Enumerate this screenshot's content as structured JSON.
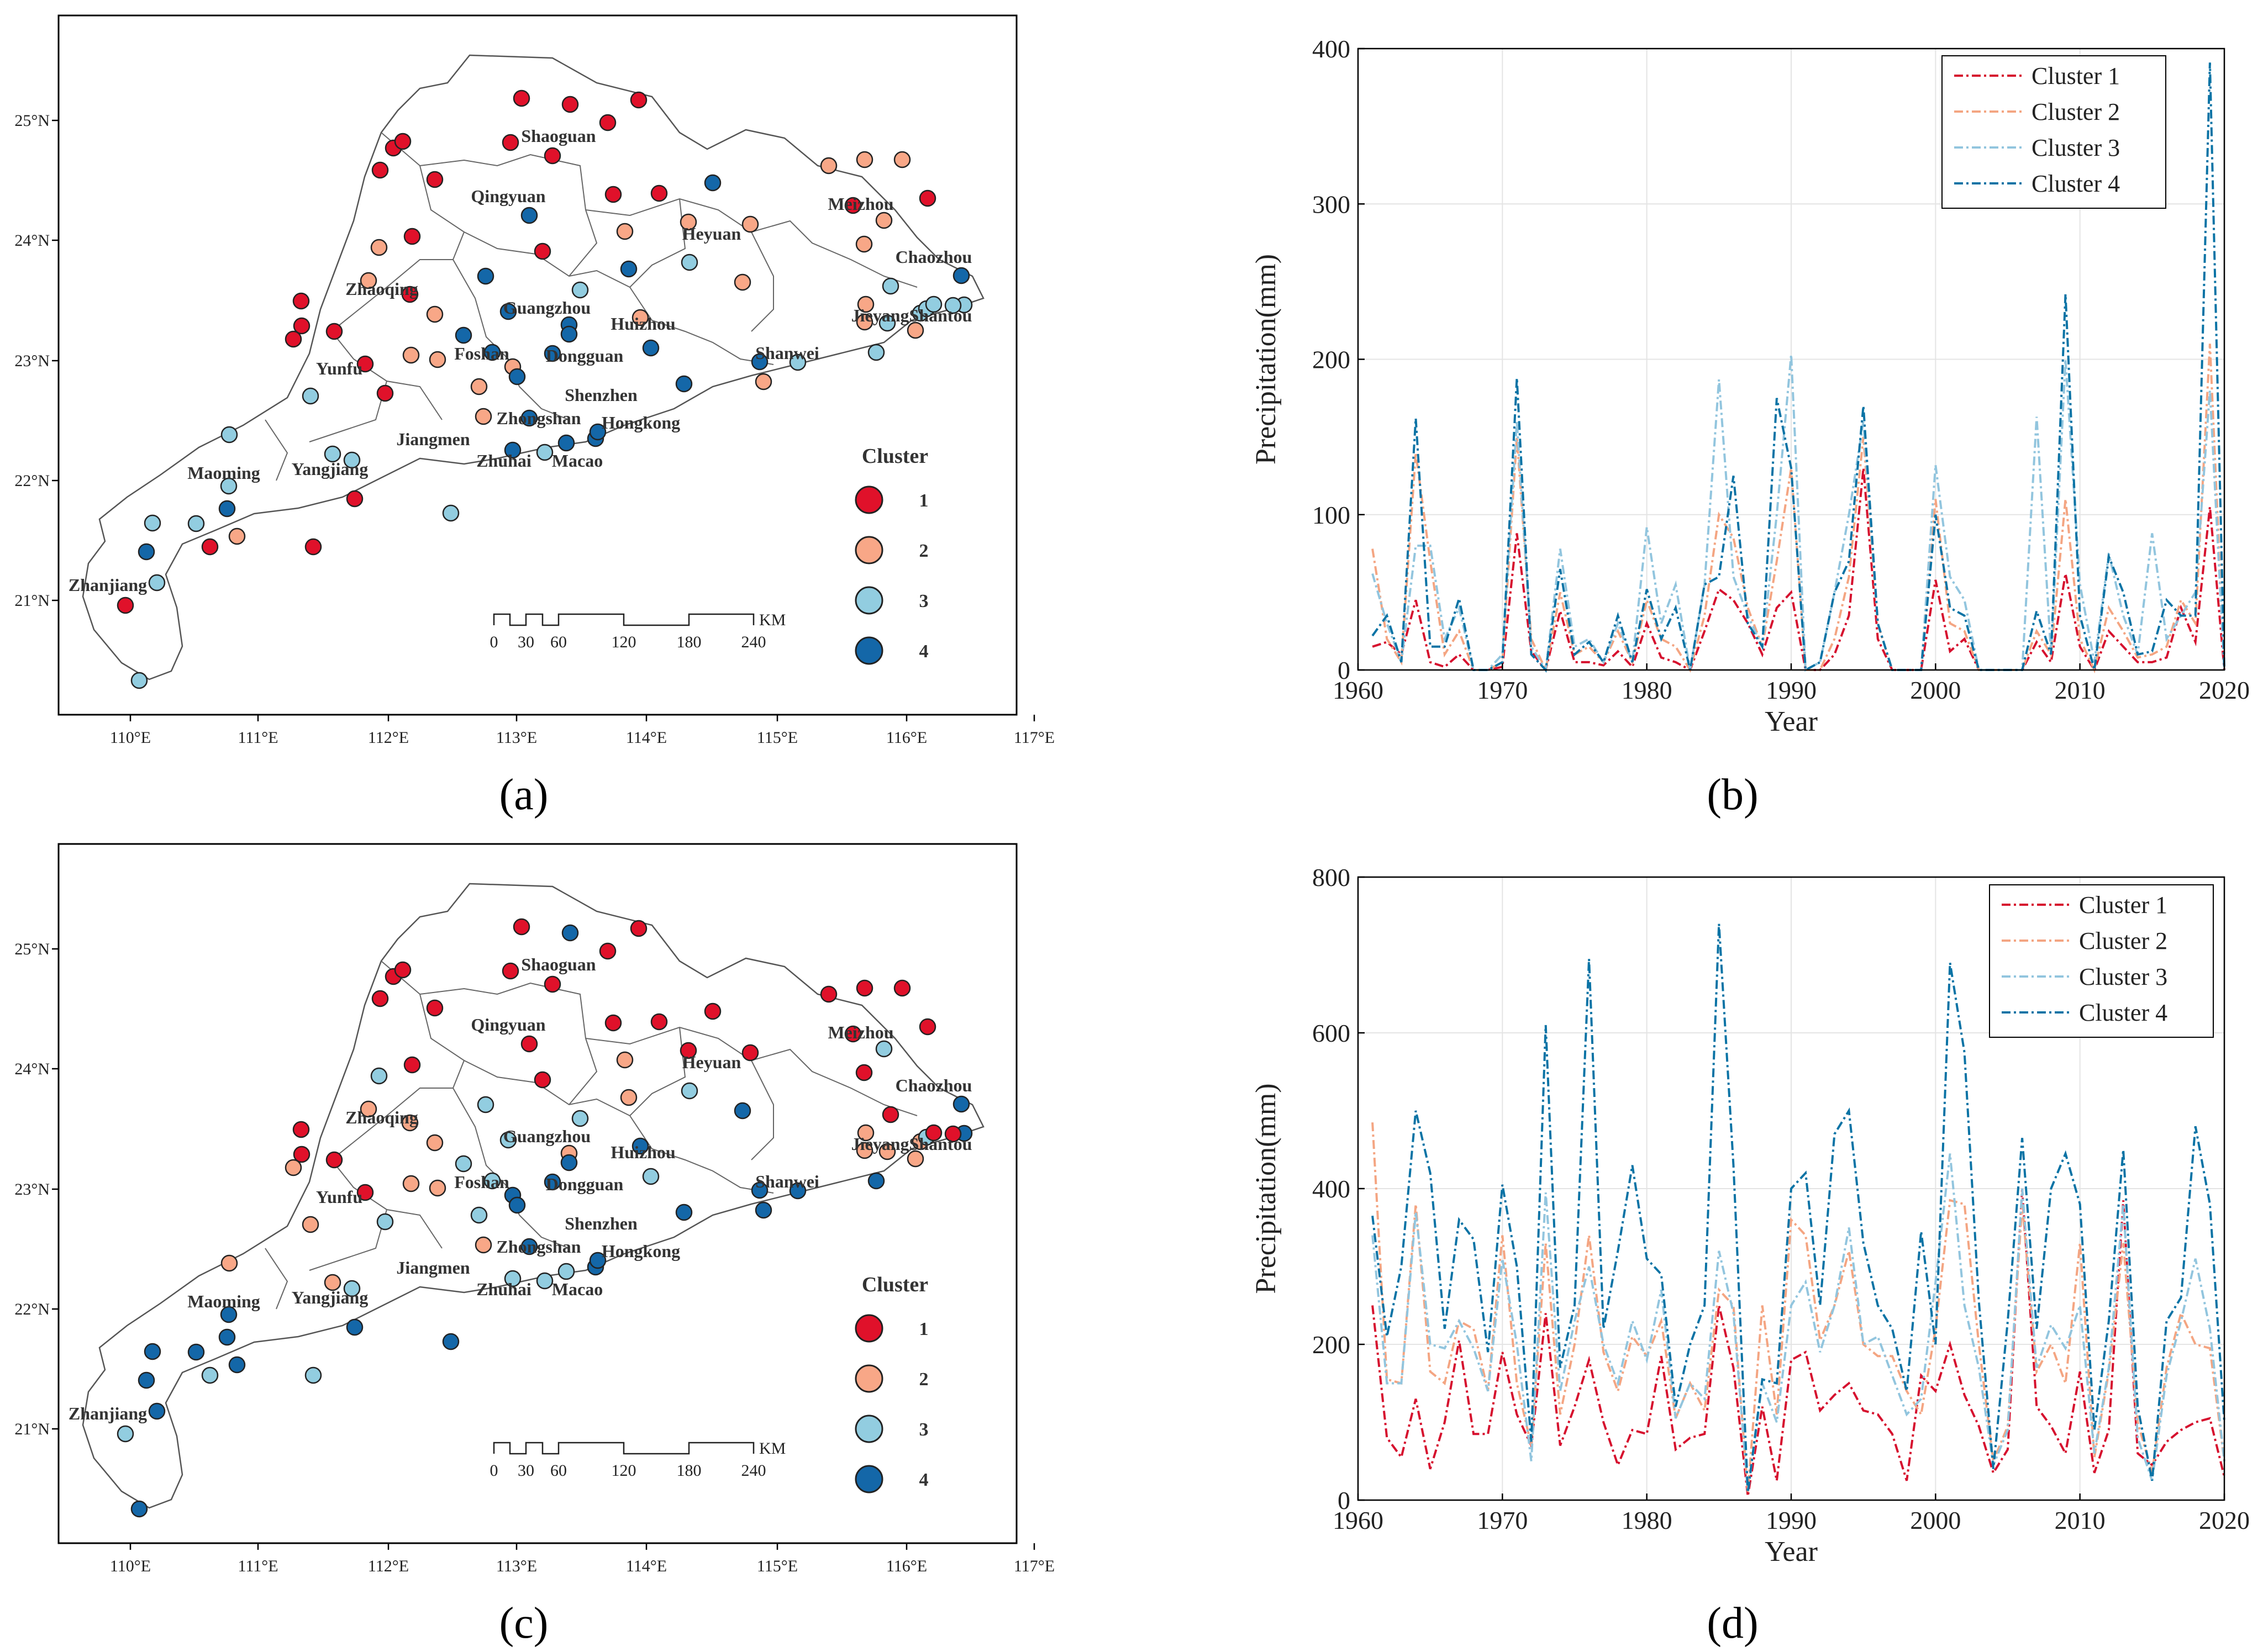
{
  "panels": {
    "a": {
      "label": "(a)"
    },
    "b": {
      "label": "(b)"
    },
    "c": {
      "label": "(c)"
    },
    "d": {
      "label": "(d)"
    }
  },
  "maps": {
    "lon_ticks": [
      "110°E",
      "111°E",
      "112°E",
      "113°E",
      "114°E",
      "115°E",
      "116°E",
      "117°E"
    ],
    "lat_ticks": [
      "25°N",
      "24°N",
      "23°N",
      "22°N",
      "21°N"
    ],
    "cities": [
      "Shaoguan",
      "Qingyuan",
      "Meizhou",
      "Heyuan",
      "Chaozhou",
      "Zhaoqing",
      "Guangzhou",
      "Huizhou",
      "JieyangShantou",
      "Yunfu",
      "Foshan",
      "Dongguan",
      "Shanwei",
      "Shenzhen",
      "Zhongshan",
      "Hongkong",
      "Jiangmen",
      "Maoming",
      "Yangjiang",
      "Zhuhai",
      "Macao",
      "Zhanjiang"
    ],
    "legend_title": "Cluster",
    "legend_items": [
      "1",
      "2",
      "3",
      "4"
    ],
    "scale_labels": [
      "0",
      "30",
      "60",
      "120",
      "180",
      "240"
    ],
    "scale_unit": "KM",
    "colors": [
      "#e0112a",
      "#f8a787",
      "#92cde0",
      "#1467a8"
    ]
  },
  "chart_data": [
    {
      "panel": "b",
      "type": "line",
      "xlabel": "Year",
      "ylabel": "Precipitation(mm)",
      "xlim": [
        1960,
        2020
      ],
      "ylim": [
        0,
        400
      ],
      "xticks": [
        1960,
        1970,
        1980,
        1990,
        2000,
        2010,
        2020
      ],
      "yticks": [
        0,
        100,
        200,
        300,
        400
      ],
      "legend_position": "top-right",
      "x": [
        1961,
        1962,
        1963,
        1964,
        1965,
        1966,
        1967,
        1968,
        1969,
        1970,
        1971,
        1972,
        1973,
        1974,
        1975,
        1976,
        1977,
        1978,
        1979,
        1980,
        1981,
        1982,
        1983,
        1984,
        1985,
        1986,
        1987,
        1988,
        1989,
        1990,
        1991,
        1992,
        1993,
        1994,
        1995,
        1996,
        1997,
        1998,
        1999,
        2000,
        2001,
        2002,
        2003,
        2004,
        2005,
        2006,
        2007,
        2008,
        2009,
        2010,
        2011,
        2012,
        2013,
        2014,
        2015,
        2016,
        2017,
        2018,
        2019,
        2020
      ],
      "series": [
        {
          "name": "Cluster 1",
          "color": "#d6102e",
          "values": [
            15,
            18,
            10,
            45,
            5,
            2,
            10,
            0,
            0,
            2,
            88,
            12,
            0,
            38,
            5,
            5,
            3,
            12,
            2,
            30,
            8,
            5,
            0,
            25,
            52,
            45,
            30,
            10,
            40,
            50,
            0,
            0,
            10,
            35,
            130,
            20,
            0,
            0,
            0,
            58,
            12,
            20,
            0,
            0,
            0,
            0,
            18,
            5,
            62,
            15,
            0,
            25,
            15,
            5,
            5,
            8,
            40,
            18,
            105,
            0
          ]
        },
        {
          "name": "Cluster 2",
          "color": "#f4a582",
          "values": [
            78,
            20,
            5,
            140,
            70,
            10,
            25,
            0,
            0,
            5,
            150,
            20,
            0,
            50,
            10,
            15,
            5,
            25,
            5,
            45,
            20,
            15,
            0,
            35,
            100,
            85,
            40,
            15,
            70,
            130,
            0,
            0,
            20,
            60,
            150,
            30,
            0,
            0,
            0,
            110,
            30,
            25,
            0,
            0,
            0,
            0,
            25,
            10,
            110,
            20,
            0,
            40,
            25,
            8,
            10,
            15,
            45,
            30,
            210,
            0
          ]
        },
        {
          "name": "Cluster 3",
          "color": "#92c5de",
          "values": [
            62,
            30,
            5,
            80,
            80,
            20,
            40,
            0,
            0,
            10,
            160,
            15,
            0,
            78,
            15,
            20,
            5,
            30,
            5,
            92,
            30,
            55,
            0,
            55,
            187,
            60,
            35,
            15,
            100,
            203,
            0,
            5,
            50,
            100,
            160,
            30,
            0,
            0,
            0,
            132,
            60,
            45,
            0,
            0,
            0,
            0,
            163,
            10,
            200,
            55,
            5,
            75,
            35,
            10,
            88,
            20,
            35,
            50,
            180,
            0
          ]
        },
        {
          "name": "Cluster 4",
          "color": "#0a73a5",
          "values": [
            22,
            35,
            5,
            162,
            15,
            15,
            46,
            0,
            0,
            5,
            188,
            10,
            0,
            65,
            10,
            18,
            5,
            35,
            5,
            52,
            20,
            40,
            0,
            55,
            60,
            125,
            30,
            15,
            175,
            130,
            0,
            5,
            50,
            70,
            170,
            30,
            0,
            0,
            0,
            100,
            40,
            35,
            0,
            0,
            0,
            0,
            38,
            10,
            242,
            35,
            0,
            73,
            50,
            10,
            12,
            45,
            35,
            35,
            391,
            0
          ]
        }
      ]
    },
    {
      "panel": "d",
      "type": "line",
      "xlabel": "Year",
      "ylabel": "Precipitation(mm)",
      "xlim": [
        1960,
        2020
      ],
      "ylim": [
        0,
        800
      ],
      "xticks": [
        1960,
        1970,
        1980,
        1990,
        2000,
        2010,
        2020
      ],
      "yticks": [
        0,
        200,
        400,
        600,
        800
      ],
      "legend_position": "top-right",
      "x": [
        1961,
        1962,
        1963,
        1964,
        1965,
        1966,
        1967,
        1968,
        1969,
        1970,
        1971,
        1972,
        1973,
        1974,
        1975,
        1976,
        1977,
        1978,
        1979,
        1980,
        1981,
        1982,
        1983,
        1984,
        1985,
        1986,
        1987,
        1988,
        1989,
        1990,
        1991,
        1992,
        1993,
        1994,
        1995,
        1996,
        1997,
        1998,
        1999,
        2000,
        2001,
        2002,
        2003,
        2004,
        2005,
        2006,
        2007,
        2008,
        2009,
        2010,
        2011,
        2012,
        2013,
        2014,
        2015,
        2016,
        2017,
        2018,
        2019,
        2020
      ],
      "series": [
        {
          "name": "Cluster 1",
          "color": "#d6102e",
          "values": [
            250,
            80,
            55,
            130,
            40,
            100,
            205,
            85,
            85,
            190,
            110,
            70,
            240,
            70,
            120,
            180,
            100,
            45,
            90,
            85,
            185,
            65,
            80,
            85,
            250,
            170,
            5,
            120,
            25,
            180,
            190,
            115,
            135,
            150,
            115,
            110,
            85,
            25,
            160,
            140,
            200,
            135,
            95,
            35,
            65,
            400,
            120,
            95,
            60,
            165,
            35,
            90,
            385,
            60,
            45,
            75,
            90,
            100,
            105,
            30
          ]
        },
        {
          "name": "Cluster 2",
          "color": "#f4a582",
          "values": [
            485,
            155,
            150,
            380,
            165,
            150,
            230,
            220,
            140,
            340,
            150,
            70,
            330,
            110,
            200,
            340,
            190,
            140,
            210,
            185,
            230,
            105,
            150,
            115,
            270,
            250,
            10,
            250,
            110,
            360,
            340,
            205,
            250,
            320,
            200,
            185,
            185,
            140,
            110,
            220,
            385,
            380,
            200,
            50,
            95,
            380,
            165,
            200,
            150,
            330,
            55,
            165,
            330,
            100,
            35,
            170,
            240,
            200,
            195,
            50
          ]
        },
        {
          "name": "Cluster 3",
          "color": "#92c5de",
          "values": [
            340,
            150,
            150,
            370,
            200,
            195,
            230,
            195,
            140,
            310,
            200,
            50,
            395,
            140,
            230,
            300,
            200,
            150,
            230,
            180,
            270,
            105,
            150,
            130,
            320,
            240,
            10,
            150,
            100,
            250,
            280,
            190,
            250,
            350,
            200,
            210,
            160,
            110,
            130,
            280,
            445,
            250,
            170,
            45,
            90,
            400,
            170,
            225,
            195,
            250,
            60,
            170,
            380,
            80,
            25,
            160,
            230,
            310,
            220,
            50
          ]
        },
        {
          "name": "Cluster 4",
          "color": "#0a73a5",
          "values": [
            365,
            210,
            300,
            500,
            420,
            220,
            360,
            335,
            190,
            405,
            300,
            75,
            610,
            170,
            250,
            695,
            220,
            320,
            430,
            310,
            290,
            120,
            200,
            250,
            740,
            430,
            10,
            155,
            150,
            400,
            420,
            250,
            470,
            500,
            330,
            250,
            220,
            140,
            345,
            200,
            690,
            575,
            255,
            40,
            230,
            465,
            220,
            400,
            445,
            380,
            90,
            230,
            450,
            120,
            25,
            230,
            260,
            480,
            380,
            100
          ]
        }
      ]
    }
  ]
}
